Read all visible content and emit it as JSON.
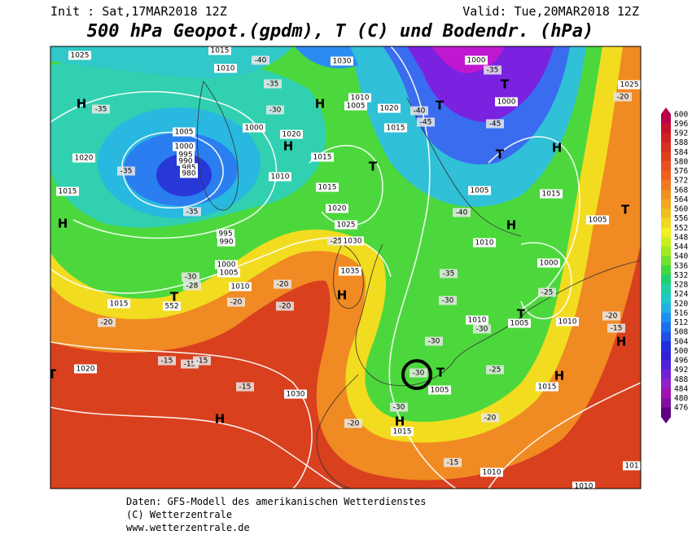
{
  "header": {
    "init": "Init : Sat,17MAR2018 12Z",
    "valid": "Valid: Tue,20MAR2018 12Z",
    "title": "500 hPa Geopot.(gpdm), T (C) und Bodendr. (hPa)"
  },
  "colorbar": {
    "ticks": [
      "600",
      "596",
      "592",
      "588",
      "584",
      "580",
      "576",
      "572",
      "568",
      "564",
      "560",
      "556",
      "552",
      "548",
      "544",
      "540",
      "536",
      "532",
      "528",
      "524",
      "520",
      "516",
      "512",
      "508",
      "504",
      "500",
      "496",
      "492",
      "488",
      "484",
      "480",
      "476"
    ],
    "colors": [
      "#b8004a",
      "#c8102c",
      "#d02020",
      "#d83020",
      "#e04020",
      "#e85020",
      "#f06020",
      "#f07820",
      "#f09020",
      "#f0a820",
      "#f0c020",
      "#f0d820",
      "#f0f020",
      "#c8f020",
      "#a0e820",
      "#70e030",
      "#40d840",
      "#20d070",
      "#20d0a0",
      "#20c8c8",
      "#20b0e0",
      "#2090f0",
      "#2070f0",
      "#2050e8",
      "#2030e0",
      "#3020d8",
      "#5020d8",
      "#7020d0",
      "#9020c8",
      "#a010b0",
      "#8010a0",
      "#600080"
    ]
  },
  "map_labels": [
    "1025",
    "1015",
    "1010",
    "-40",
    "1030",
    "1000",
    "-35",
    "T",
    "1000",
    "1025",
    "-20",
    "H",
    "-35",
    "-35",
    "-30",
    "H",
    "1010",
    "1005",
    "1020",
    "T",
    "-40",
    "-45",
    "1015",
    "-45",
    "1005",
    "1000",
    "1020",
    "H",
    "1000",
    "995",
    "990",
    "985",
    "980",
    "-35",
    "1020",
    "1015",
    "T",
    "T",
    "H",
    "1010",
    "1015",
    "1005",
    "1015",
    "1015",
    "H",
    "-35",
    "1020",
    "-40",
    "H",
    "1005",
    "T",
    "1025",
    "-25",
    "1030",
    "995",
    "990",
    "1010",
    "1000",
    "1005",
    "1000",
    "1010",
    "-30",
    "-28",
    "-35",
    "-25",
    "1015",
    "T",
    "552",
    "-20",
    "-20",
    "1035",
    "H",
    "-20",
    "-30",
    "-20",
    "1010",
    "T",
    "1005",
    "1010",
    "-15",
    "-20",
    "-30",
    "H",
    "-30",
    "T",
    "-30",
    "-15",
    "-15",
    "-15",
    "-25",
    "H",
    "1015",
    "1020",
    "T",
    "1005",
    "-15",
    "1030",
    "-30",
    "H",
    "1015",
    "H",
    "-20",
    "-20",
    "-15",
    "1010",
    "101",
    "1010"
  ],
  "footer": {
    "lines": [
      "Daten: GFS-Modell des amerikanischen Wetterdienstes",
      "(C) Wetterzentrale",
      "www.wetterzentrale.de"
    ]
  }
}
